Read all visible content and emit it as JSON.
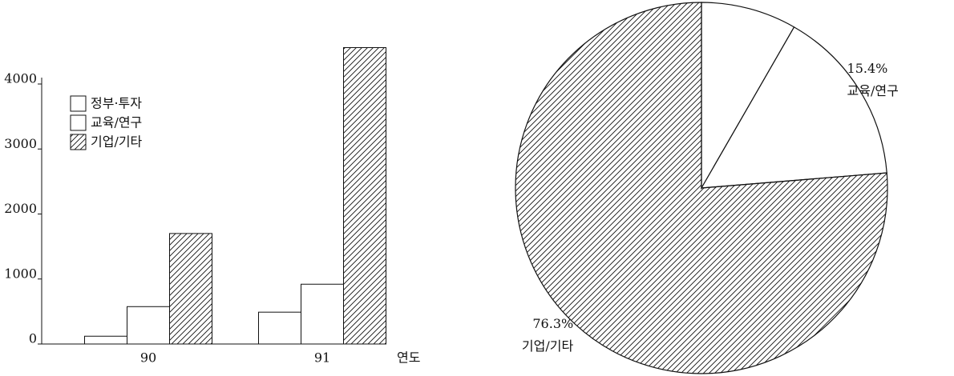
{
  "chart_data": [
    {
      "type": "bar",
      "x_label": "연도",
      "categories": [
        "90",
        "91"
      ],
      "series": [
        {
          "name": "정부·투자",
          "pattern": "none",
          "values": [
            120,
            490
          ]
        },
        {
          "name": "교육/연구",
          "pattern": "none",
          "values": [
            575,
            920
          ]
        },
        {
          "name": "기업/기타",
          "pattern": "hatch",
          "values": [
            1700,
            4560
          ]
        }
      ],
      "ylim": [
        0,
        4800
      ],
      "yticks": [
        0,
        1000,
        2000,
        3000,
        4000
      ]
    },
    {
      "type": "pie",
      "categories": [
        null,
        "교육/연구",
        "기업/기타"
      ],
      "values": [
        8.3,
        15.4,
        76.3
      ],
      "value_labels": [
        null,
        "15.4%",
        "76.3%"
      ],
      "patterns": [
        "none",
        "none",
        "hatch"
      ]
    }
  ]
}
